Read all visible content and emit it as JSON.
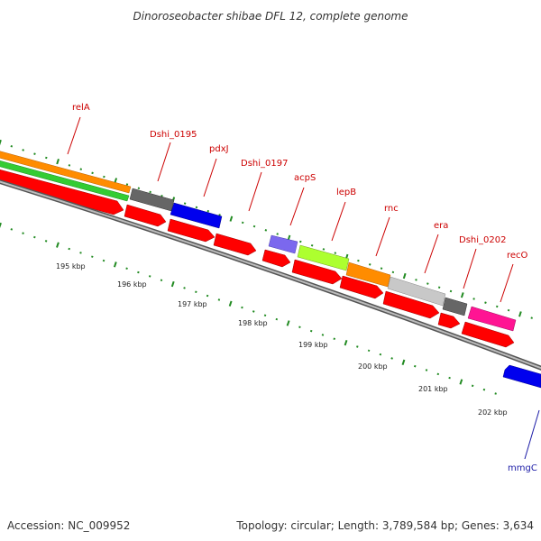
{
  "title": "Dinoroseobacter shibae DFL 12, complete genome",
  "footer": {
    "accession": "Accession: NC_009952",
    "topology": "Topology: circular; Length: 3,789,584 bp; Genes: 3,634"
  },
  "colors": {
    "backbone": "#888888",
    "tick_green": "#228B22",
    "label_red": "#cc0000",
    "label_blue": "#1a1aa6",
    "cds_red": "#ff0000"
  },
  "kbp_labels": [
    "195 kbp",
    "196 kbp",
    "197 kbp",
    "198 kbp",
    "199 kbp",
    "200 kbp",
    "201 kbp",
    "202 kbp"
  ],
  "gene_labels": [
    "relA",
    "Dshi_0195",
    "pdxJ",
    "Dshi_0197",
    "acpS",
    "lepB",
    "rnc",
    "era",
    "Dshi_0202",
    "recO",
    "mmgC"
  ],
  "features": [
    {
      "name": "relA",
      "track": "cog",
      "color": "orange"
    },
    {
      "name": "relA",
      "track": "cog",
      "color": "green"
    },
    {
      "name": "Dshi_0195",
      "track": "cog",
      "color": "dark-gray"
    },
    {
      "name": "pdxJ",
      "track": "cog",
      "color": "blue"
    },
    {
      "name": "acpS",
      "track": "cog",
      "color": "slate-blue"
    },
    {
      "name": "lepB",
      "track": "cog",
      "color": "yellow-green"
    },
    {
      "name": "rnc",
      "track": "cog",
      "color": "orange"
    },
    {
      "name": "era",
      "track": "cog",
      "color": "light-gray"
    },
    {
      "name": "Dshi_0202",
      "track": "cog",
      "color": "dark-gray"
    },
    {
      "name": "recO",
      "track": "cog",
      "color": "magenta"
    },
    {
      "name": "mmgC",
      "track": "cog",
      "color": "blue",
      "strand": "reverse"
    }
  ]
}
